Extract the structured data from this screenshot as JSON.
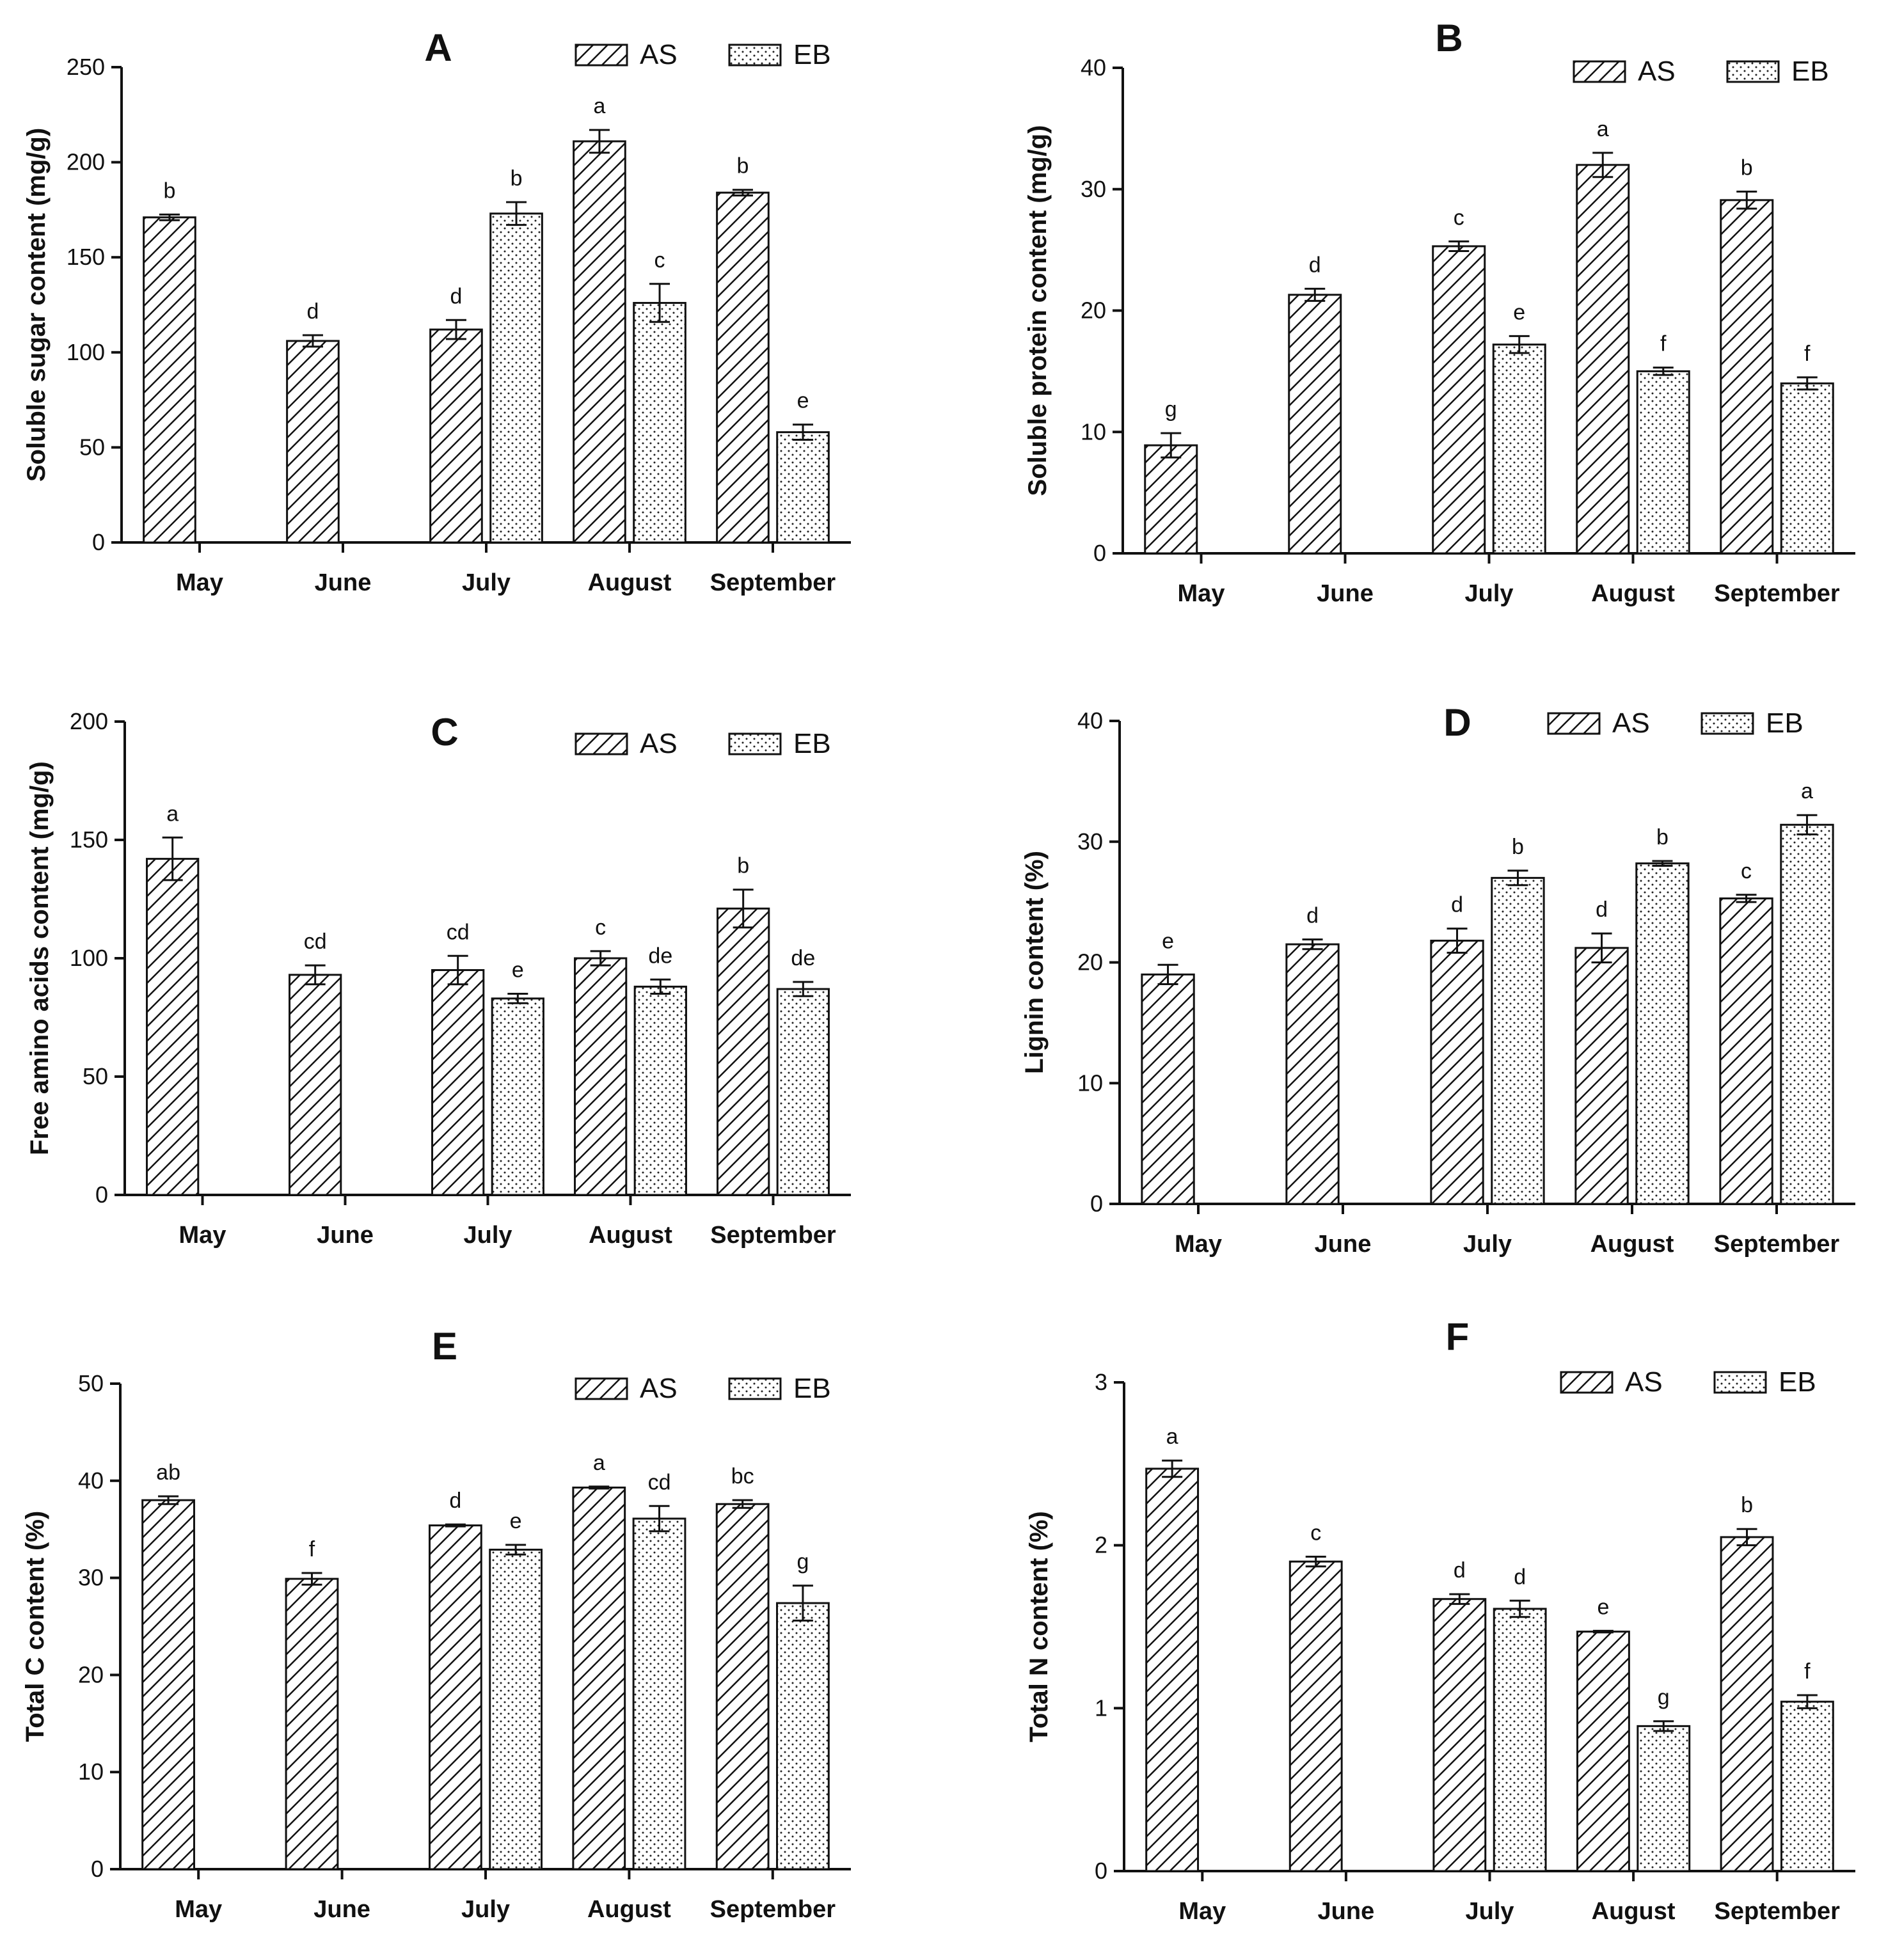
{
  "figure": {
    "series_names": [
      "AS",
      "EB"
    ],
    "months": [
      "May",
      "June",
      "July",
      "August",
      "September"
    ]
  },
  "chart_data": [
    {
      "panel": "A",
      "type": "bar",
      "ylabel": "Soluble sugar content (mg/g)",
      "ylim": [
        0,
        250
      ],
      "yticks": [
        0,
        50,
        100,
        150,
        200,
        250
      ],
      "categories": [
        "May",
        "June",
        "July",
        "August",
        "September"
      ],
      "legend_position": "top-right",
      "series": [
        {
          "name": "AS",
          "values": [
            171,
            106,
            112,
            211,
            184
          ],
          "errors": [
            1.5,
            3,
            5,
            6,
            1.5
          ],
          "letters": [
            "b",
            "d",
            "d",
            "a",
            "b"
          ]
        },
        {
          "name": "EB",
          "values": [
            null,
            null,
            173,
            126,
            58
          ],
          "errors": [
            null,
            null,
            6,
            10,
            4
          ],
          "letters": [
            "",
            "",
            "b",
            "c",
            "e"
          ]
        }
      ]
    },
    {
      "panel": "B",
      "type": "bar",
      "ylabel": "Soluble protein content (mg/g)",
      "ylim": [
        0,
        40
      ],
      "yticks": [
        0,
        10,
        20,
        30,
        40
      ],
      "categories": [
        "May",
        "June",
        "July",
        "August",
        "September"
      ],
      "legend_position": "top-right",
      "series": [
        {
          "name": "AS",
          "values": [
            8.9,
            21.3,
            25.3,
            32.0,
            29.1
          ],
          "errors": [
            1.0,
            0.5,
            0.4,
            1.0,
            0.7
          ],
          "letters": [
            "g",
            "d",
            "c",
            "a",
            "b"
          ]
        },
        {
          "name": "EB",
          "values": [
            null,
            null,
            17.2,
            15.0,
            14.0
          ],
          "errors": [
            null,
            null,
            0.7,
            0.3,
            0.5
          ],
          "letters": [
            "",
            "",
            "e",
            "f",
            "f"
          ]
        }
      ]
    },
    {
      "panel": "C",
      "type": "bar",
      "ylabel": "Free amino acids content (mg/g)",
      "ylim": [
        0,
        200
      ],
      "yticks": [
        0,
        50,
        100,
        150,
        200
      ],
      "categories": [
        "May",
        "June",
        "July",
        "August",
        "September"
      ],
      "legend_position": "top-right",
      "series": [
        {
          "name": "AS",
          "values": [
            142,
            93,
            95,
            100,
            121
          ],
          "errors": [
            9,
            4,
            6,
            3,
            8
          ],
          "letters": [
            "a",
            "cd",
            "cd",
            "c",
            "b"
          ]
        },
        {
          "name": "EB",
          "values": [
            null,
            null,
            83,
            88,
            87
          ],
          "errors": [
            null,
            null,
            2,
            3,
            3
          ],
          "letters": [
            "",
            "",
            "e",
            "de",
            "de"
          ]
        }
      ]
    },
    {
      "panel": "D",
      "type": "bar",
      "ylabel": "Lignin content (%)",
      "ylim": [
        0,
        40
      ],
      "yticks": [
        0,
        10,
        20,
        30,
        40
      ],
      "categories": [
        "May",
        "June",
        "July",
        "August",
        "September"
      ],
      "legend_position": "top-right",
      "series": [
        {
          "name": "AS",
          "values": [
            19.0,
            21.5,
            21.8,
            21.2,
            25.3
          ],
          "errors": [
            0.8,
            0.4,
            1.0,
            1.2,
            0.3
          ],
          "letters": [
            "e",
            "d",
            "d",
            "d",
            "c"
          ]
        },
        {
          "name": "EB",
          "values": [
            null,
            null,
            27.0,
            28.2,
            31.4
          ],
          "errors": [
            null,
            null,
            0.6,
            0.2,
            0.8
          ],
          "letters": [
            "",
            "",
            "b",
            "b",
            "a"
          ]
        }
      ]
    },
    {
      "panel": "E",
      "type": "bar",
      "ylabel": "Total C content (%)",
      "ylim": [
        0,
        50
      ],
      "yticks": [
        0,
        10,
        20,
        30,
        40,
        50
      ],
      "categories": [
        "May",
        "June",
        "July",
        "August",
        "September"
      ],
      "legend_position": "top-right",
      "series": [
        {
          "name": "AS",
          "values": [
            38.0,
            29.9,
            35.4,
            39.3,
            37.6
          ],
          "errors": [
            0.4,
            0.6,
            0.1,
            0.1,
            0.4
          ],
          "letters": [
            "ab",
            "f",
            "d",
            "a",
            "bc"
          ]
        },
        {
          "name": "EB",
          "values": [
            null,
            null,
            32.9,
            36.1,
            27.4
          ],
          "errors": [
            null,
            null,
            0.5,
            1.3,
            1.8
          ],
          "letters": [
            "",
            "",
            "e",
            "cd",
            "g"
          ]
        }
      ]
    },
    {
      "panel": "F",
      "type": "bar",
      "ylabel": "Total N content (%)",
      "ylim": [
        0,
        3
      ],
      "yticks": [
        0,
        1,
        2,
        3
      ],
      "categories": [
        "May",
        "June",
        "July",
        "August",
        "September"
      ],
      "legend_position": "top-right",
      "series": [
        {
          "name": "AS",
          "values": [
            2.47,
            1.9,
            1.67,
            1.47,
            2.05
          ],
          "errors": [
            0.05,
            0.03,
            0.03,
            0.005,
            0.05
          ],
          "letters": [
            "a",
            "c",
            "d",
            "e",
            "b"
          ]
        },
        {
          "name": "EB",
          "values": [
            null,
            null,
            1.61,
            0.89,
            1.04
          ],
          "errors": [
            null,
            null,
            0.05,
            0.03,
            0.04
          ],
          "letters": [
            "",
            "",
            "d",
            "g",
            "f"
          ]
        }
      ]
    }
  ]
}
